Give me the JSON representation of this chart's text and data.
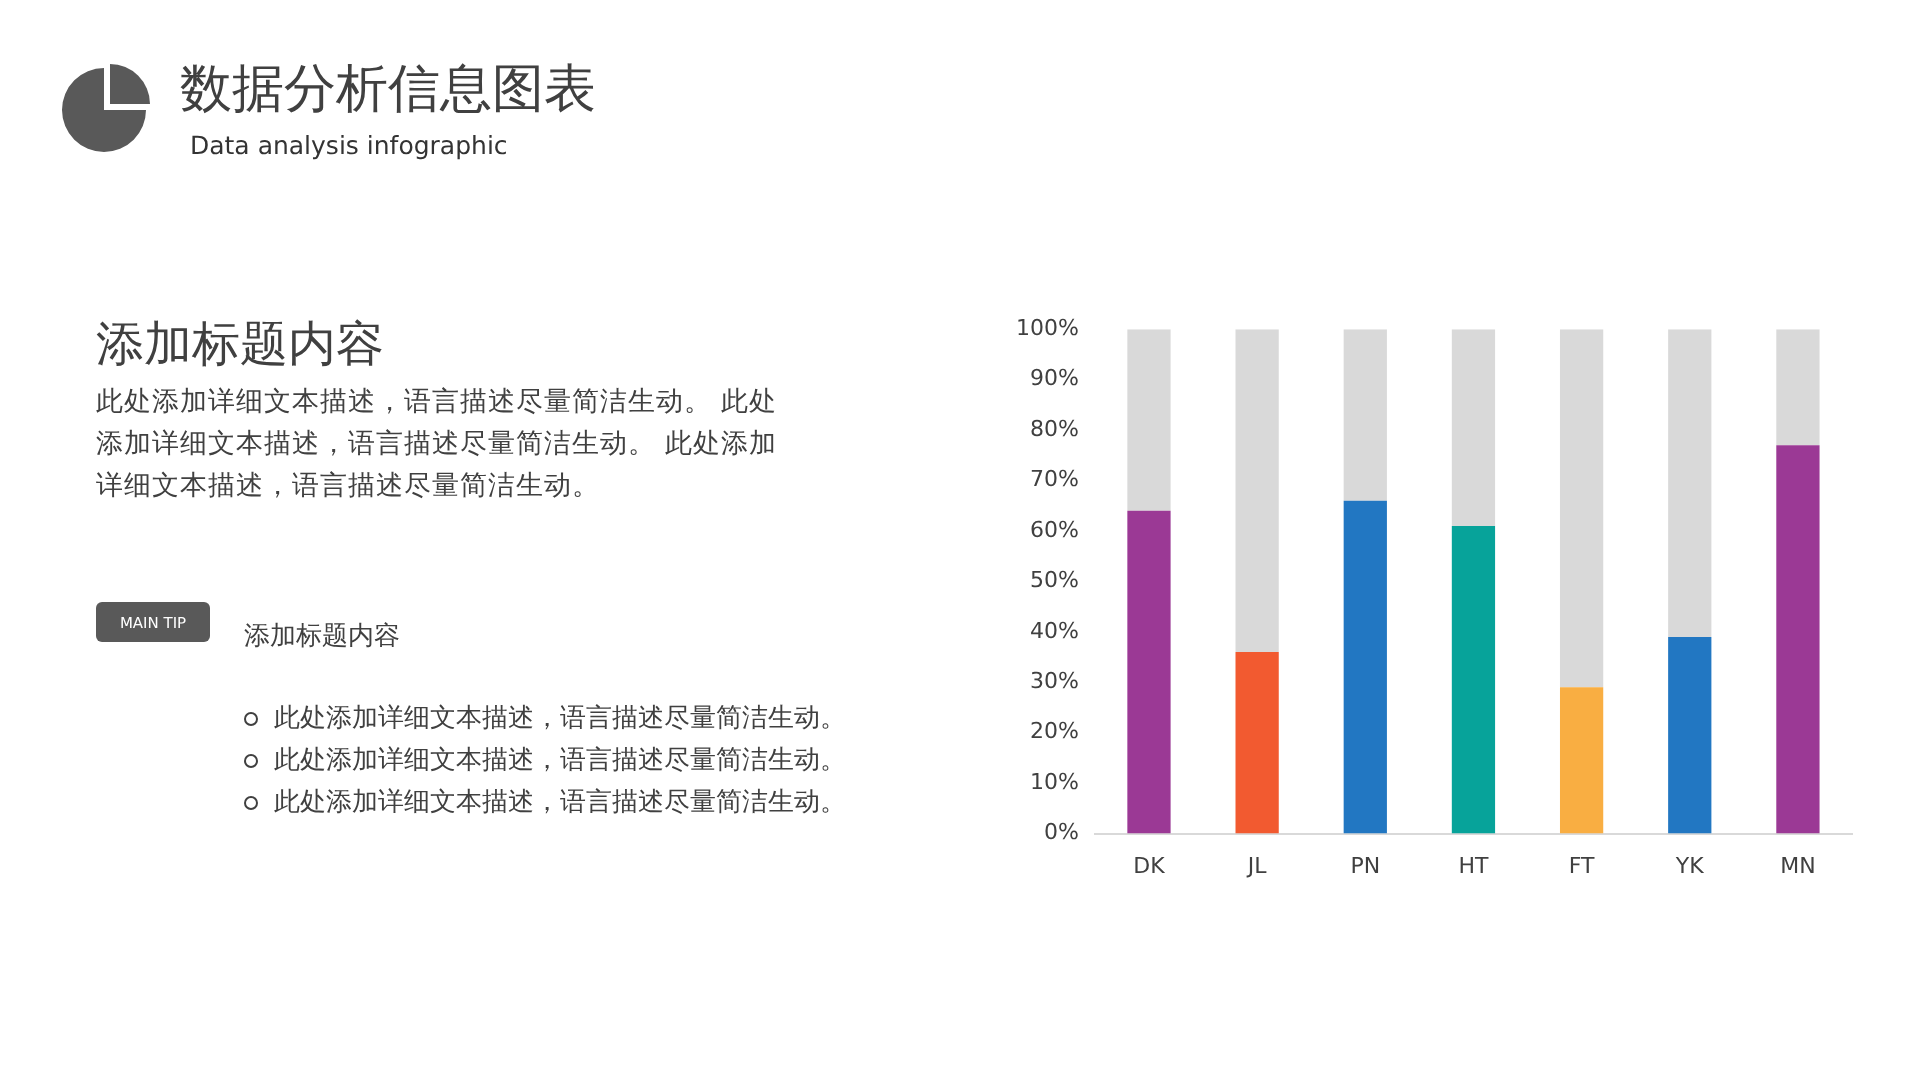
{
  "chart_data": {
    "type": "bar",
    "title": "数据分析信息图表",
    "subtitle": "Data analysis infographic",
    "categories": [
      "DK",
      "JL",
      "PN",
      "HT",
      "FT",
      "YK",
      "MN"
    ],
    "stacked": true,
    "series": [
      {
        "colors": [
          "#9b3995",
          "#f25a30",
          "#2277c2",
          "#07a39a",
          "#f9ae42",
          "#2277c2",
          "#9b3995"
        ],
        "values": [
          64,
          36,
          66,
          61,
          29,
          39,
          77
        ]
      },
      {
        "color": "#d9d9d9",
        "values": [
          36,
          64,
          34,
          39,
          71,
          61,
          23
        ]
      }
    ],
    "ylim": [
      0,
      100
    ],
    "yticks": [
      {
        "value": 0,
        "label": "0%"
      },
      {
        "value": 10,
        "label": "10%"
      },
      {
        "value": 20,
        "label": "20%"
      },
      {
        "value": 30,
        "label": "30%"
      },
      {
        "value": 40,
        "label": "40%"
      },
      {
        "value": 50,
        "label": "50%"
      },
      {
        "value": 60,
        "label": "60%"
      },
      {
        "value": 70,
        "label": "70%"
      },
      {
        "value": 80,
        "label": "80%"
      },
      {
        "value": 90,
        "label": "90%"
      },
      {
        "value": 100,
        "label": "100%"
      }
    ],
    "annotations": [
      "添加标题内容",
      "此处添加详细文本描述，语言描述尽量简洁生动。 此处添加详细文本描述，语言描述尽量简洁生动。 此处添加详细文本描述，语言描述尽量简洁生动。",
      "MAIN TIP",
      "添加标题内容",
      "此处添加详细文本描述，语言描述尽量简洁生动。",
      "此处添加详细文本描述，语言描述尽量简洁生动。",
      "此处添加详细文本描述，语言描述尽量简洁生动。"
    ]
  }
}
